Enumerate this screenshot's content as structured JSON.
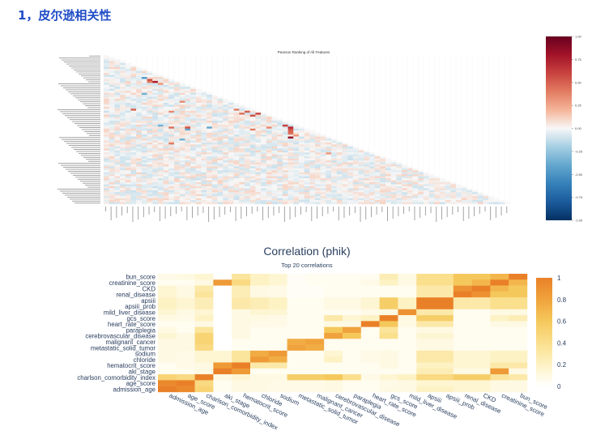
{
  "heading": "1，皮尔逊相关性",
  "chart_data": [
    {
      "type": "heatmap",
      "title": "Pearson Ranking of All Features",
      "note": "Lower-triangle Pearson correlation matrix; row and column labels are too small to read.",
      "vmin": -1,
      "vmax": 1,
      "colorbar_ticks": [
        "1.00",
        "0.75",
        "0.50",
        "0.25",
        "0.00",
        "-0.25",
        "-0.50",
        "-0.75",
        "-1.00"
      ],
      "colormap": "RdBu_r",
      "n_features": 75,
      "strong_cells": [
        {
          "row": 11,
          "col": 7,
          "value": -0.45
        },
        {
          "row": 12,
          "col": 8,
          "value": 0.55
        },
        {
          "row": 13,
          "col": 9,
          "value": 0.75
        },
        {
          "row": 14,
          "col": 10,
          "value": 0.3
        },
        {
          "row": 13,
          "col": 8,
          "value": 0.4
        },
        {
          "row": 27,
          "col": 5,
          "value": 0.5
        },
        {
          "row": 27,
          "col": 24,
          "value": 0.4
        },
        {
          "row": 28,
          "col": 12,
          "value": 0.35
        },
        {
          "row": 29,
          "col": 25,
          "value": 0.45
        },
        {
          "row": 28,
          "col": 26,
          "value": 0.5
        },
        {
          "row": 30,
          "col": 27,
          "value": 0.55
        },
        {
          "row": 29,
          "col": 28,
          "value": 0.6
        },
        {
          "row": 35,
          "col": 33,
          "value": 0.6
        },
        {
          "row": 36,
          "col": 34,
          "value": 0.7
        },
        {
          "row": 37,
          "col": 34,
          "value": 0.55
        },
        {
          "row": 38,
          "col": 34,
          "value": 0.5
        },
        {
          "row": 39,
          "col": 34,
          "value": 0.45
        },
        {
          "row": 38,
          "col": 42,
          "value": 0.6
        },
        {
          "row": 39,
          "col": 43,
          "value": 0.55
        },
        {
          "row": 40,
          "col": 46,
          "value": 0.5
        },
        {
          "row": 41,
          "col": 47,
          "value": 0.5
        },
        {
          "row": 42,
          "col": 50,
          "value": 0.55
        },
        {
          "row": 43,
          "col": 51,
          "value": 0.45
        },
        {
          "row": 36,
          "col": 12,
          "value": 0.45
        },
        {
          "row": 36,
          "col": 15,
          "value": 0.55
        },
        {
          "row": 37,
          "col": 15,
          "value": -0.4
        },
        {
          "row": 36,
          "col": 19,
          "value": -0.4
        },
        {
          "row": 35,
          "col": 10,
          "value": -0.35
        },
        {
          "row": 37,
          "col": 27,
          "value": 0.4
        },
        {
          "row": 36,
          "col": 30,
          "value": 0.35
        },
        {
          "row": 41,
          "col": 34,
          "value": 0.85
        },
        {
          "row": 40,
          "col": 35,
          "value": 0.3
        },
        {
          "row": 44,
          "col": 12,
          "value": 0.4
        },
        {
          "row": 42,
          "col": 14,
          "value": -0.35
        },
        {
          "row": 19,
          "col": 7,
          "value": -0.35
        },
        {
          "row": 23,
          "col": 14,
          "value": 0.35
        },
        {
          "row": 48,
          "col": 54,
          "value": -0.3
        },
        {
          "row": 49,
          "col": 41,
          "value": 0.3
        }
      ]
    },
    {
      "type": "heatmap",
      "title": "Correlation (phik)",
      "subtitle": "Top 20 correlations",
      "vmin": 0,
      "vmax": 1,
      "colorbar_ticks": [
        "1",
        "0.8",
        "0.6",
        "0.4",
        "0.2",
        "0"
      ],
      "colorbar_values": [
        1,
        0.8,
        0.6,
        0.4,
        0.2,
        0
      ],
      "rows": [
        "bun_score",
        "creatinine_score",
        "CKD",
        "renal_disease",
        "apsiii",
        "apsiii_prob",
        "mild_liver_disease",
        "gcs_score",
        "heart_rate_score",
        "paraplegia",
        "cerebrovascular_disease",
        "malignant_cancer",
        "metastatic_solid_tumor",
        "sodium",
        "chloride",
        "hematocrit_score",
        "aki_stage",
        "charlson_comorbidity_index",
        "age_score",
        "admission_age"
      ],
      "columns": [
        "admission_age",
        "age_score",
        "charlson_comorbidity_index",
        "aki_stage",
        "hematocrit_score",
        "chloride",
        "sodium",
        "metastatic_solid_tumor",
        "malignant_cancer",
        "cerebrovascular_disease",
        "paraplegia",
        "heart_rate_score",
        "gcs_score",
        "mild_liver_disease",
        "apsiii",
        "apsiii_prob",
        "renal_disease",
        "CKD",
        "creatinine_score",
        "bun_score"
      ],
      "values": [
        [
          0.08,
          0.1,
          0.15,
          0.0,
          0.35,
          0.2,
          0.15,
          0.03,
          0.05,
          0.05,
          0.05,
          0.05,
          0.25,
          0.1,
          0.4,
          0.4,
          0.6,
          0.6,
          0.7,
          1.0
        ],
        [
          0.05,
          0.05,
          0.1,
          0.85,
          0.45,
          0.2,
          0.15,
          0.03,
          0.05,
          0.05,
          0.05,
          0.08,
          0.2,
          0.1,
          0.4,
          0.4,
          0.6,
          0.7,
          1.0,
          0.7
        ],
        [
          0.15,
          0.1,
          0.3,
          0.0,
          0.25,
          0.1,
          0.08,
          0.03,
          0.03,
          0.05,
          0.05,
          0.05,
          0.05,
          0.05,
          0.3,
          0.3,
          0.9,
          1.0,
          0.7,
          0.6
        ],
        [
          0.15,
          0.1,
          0.35,
          0.0,
          0.25,
          0.1,
          0.08,
          0.03,
          0.03,
          0.05,
          0.05,
          0.05,
          0.05,
          0.05,
          0.3,
          0.3,
          1.0,
          0.9,
          0.6,
          0.6
        ],
        [
          0.2,
          0.15,
          0.25,
          0.0,
          0.3,
          0.25,
          0.2,
          0.05,
          0.05,
          0.1,
          0.1,
          0.15,
          0.55,
          0.2,
          1.0,
          1.0,
          0.3,
          0.3,
          0.4,
          0.4
        ],
        [
          0.2,
          0.15,
          0.25,
          0.0,
          0.3,
          0.25,
          0.2,
          0.05,
          0.05,
          0.1,
          0.1,
          0.15,
          0.55,
          0.2,
          1.0,
          1.0,
          0.3,
          0.3,
          0.4,
          0.4
        ],
        [
          0.15,
          0.1,
          0.15,
          0.0,
          0.1,
          0.15,
          0.15,
          0.05,
          0.05,
          0.05,
          0.05,
          0.08,
          0.1,
          0.9,
          0.3,
          0.3,
          0.05,
          0.05,
          0.1,
          0.1
        ],
        [
          0.1,
          0.08,
          0.2,
          0.0,
          0.1,
          0.1,
          0.08,
          0.05,
          0.05,
          0.3,
          0.15,
          0.2,
          1.0,
          0.1,
          0.55,
          0.55,
          0.05,
          0.05,
          0.2,
          0.25
        ],
        [
          0.05,
          0.05,
          0.1,
          0.0,
          0.1,
          0.08,
          0.08,
          0.05,
          0.05,
          0.1,
          0.1,
          1.0,
          0.6,
          0.1,
          0.3,
          0.3,
          0.05,
          0.05,
          0.1,
          0.1
        ],
        [
          0.1,
          0.05,
          0.35,
          0.0,
          0.1,
          0.05,
          0.05,
          0.05,
          0.05,
          0.6,
          0.8,
          0.05,
          0.35,
          0.05,
          0.1,
          0.1,
          0.05,
          0.05,
          0.05,
          0.05
        ],
        [
          0.15,
          0.1,
          0.5,
          0.0,
          0.1,
          0.05,
          0.05,
          0.05,
          0.05,
          0.8,
          0.6,
          0.05,
          0.4,
          0.05,
          0.15,
          0.15,
          0.05,
          0.05,
          0.05,
          0.05
        ],
        [
          0.1,
          0.1,
          0.5,
          0.0,
          0.05,
          0.05,
          0.05,
          0.75,
          0.8,
          0.05,
          0.05,
          0.05,
          0.05,
          0.05,
          0.1,
          0.1,
          0.05,
          0.05,
          0.05,
          0.05
        ],
        [
          0.1,
          0.1,
          0.45,
          0.0,
          0.05,
          0.05,
          0.05,
          0.8,
          0.75,
          0.05,
          0.05,
          0.05,
          0.05,
          0.05,
          0.1,
          0.1,
          0.05,
          0.05,
          0.05,
          0.05
        ],
        [
          0.1,
          0.08,
          0.15,
          0.15,
          0.35,
          0.75,
          0.85,
          0.05,
          0.05,
          0.15,
          0.05,
          0.08,
          0.1,
          0.05,
          0.3,
          0.3,
          0.15,
          0.15,
          0.2,
          0.2
        ],
        [
          0.1,
          0.08,
          0.15,
          0.15,
          0.35,
          0.85,
          0.75,
          0.05,
          0.05,
          0.2,
          0.05,
          0.08,
          0.1,
          0.05,
          0.3,
          0.3,
          0.15,
          0.15,
          0.2,
          0.2
        ],
        [
          0.05,
          0.08,
          0.1,
          0.85,
          1.0,
          0.3,
          0.3,
          0.05,
          0.05,
          0.05,
          0.05,
          0.05,
          0.1,
          0.05,
          0.2,
          0.2,
          0.15,
          0.15,
          0.3,
          0.3
        ],
        [
          0.05,
          0.05,
          0.1,
          1.0,
          0.85,
          0.05,
          0.05,
          0.05,
          0.05,
          0.05,
          0.05,
          0.05,
          0.05,
          0.05,
          0.25,
          0.25,
          0.1,
          0.1,
          0.85,
          0.1
        ],
        [
          0.5,
          0.45,
          1.0,
          0.1,
          0.15,
          0.1,
          0.1,
          0.55,
          0.55,
          0.6,
          0.4,
          0.08,
          0.15,
          0.2,
          0.45,
          0.45,
          0.55,
          0.55,
          0.35,
          0.3
        ],
        [
          0.95,
          1.0,
          0.45,
          0.05,
          0.1,
          0.1,
          0.08,
          0.08,
          0.08,
          0.1,
          0.05,
          0.05,
          0.08,
          0.1,
          0.15,
          0.15,
          0.15,
          0.15,
          0.1,
          0.1
        ],
        [
          1.0,
          0.95,
          0.5,
          0.05,
          0.1,
          0.1,
          0.08,
          0.08,
          0.08,
          0.1,
          0.05,
          0.05,
          0.1,
          0.1,
          0.2,
          0.2,
          0.15,
          0.15,
          0.1,
          0.1
        ]
      ]
    }
  ]
}
